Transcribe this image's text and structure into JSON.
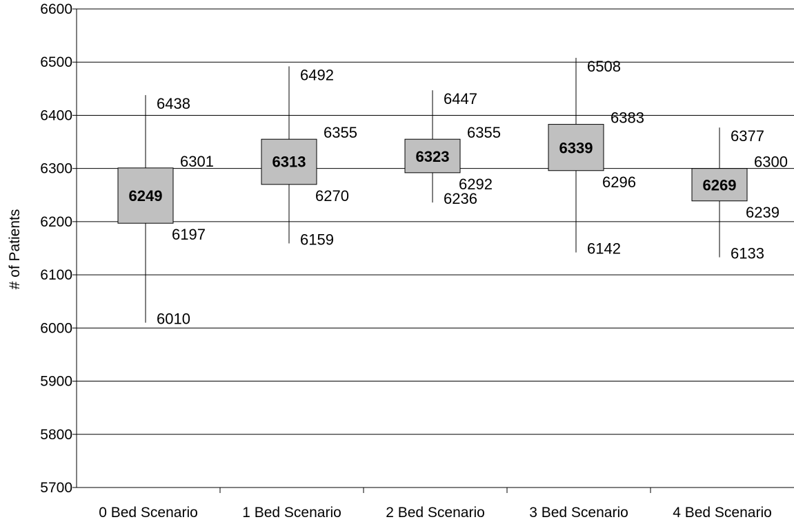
{
  "chart_data": {
    "type": "box",
    "title": "",
    "xlabel": "",
    "ylabel": "# of Patients",
    "ylim": [
      5700,
      6600
    ],
    "y_ticks": [
      5700,
      5800,
      5900,
      6000,
      6100,
      6200,
      6300,
      6400,
      6500,
      6600
    ],
    "grid": true,
    "box_color": "#c0c0c0",
    "categories": [
      "0 Bed Scenario",
      "1 Bed Scenario",
      "2 Bed Scenario",
      "3 Bed Scenario",
      "4 Bed Scenario"
    ],
    "series": [
      {
        "category": "0 Bed Scenario",
        "min": 6010,
        "low": 6197,
        "mean": 6249,
        "high": 6301,
        "max": 6438
      },
      {
        "category": "1 Bed Scenario",
        "min": 6159,
        "low": 6270,
        "mean": 6313,
        "high": 6355,
        "max": 6492
      },
      {
        "category": "2 Bed Scenario",
        "min": 6236,
        "low": 6292,
        "mean": 6323,
        "high": 6355,
        "max": 6447
      },
      {
        "category": "3 Bed Scenario",
        "min": 6142,
        "low": 6296,
        "mean": 6339,
        "high": 6383,
        "max": 6508
      },
      {
        "category": "4 Bed Scenario",
        "min": 6133,
        "low": 6239,
        "mean": 6269,
        "high": 6300,
        "max": 6377
      }
    ]
  }
}
